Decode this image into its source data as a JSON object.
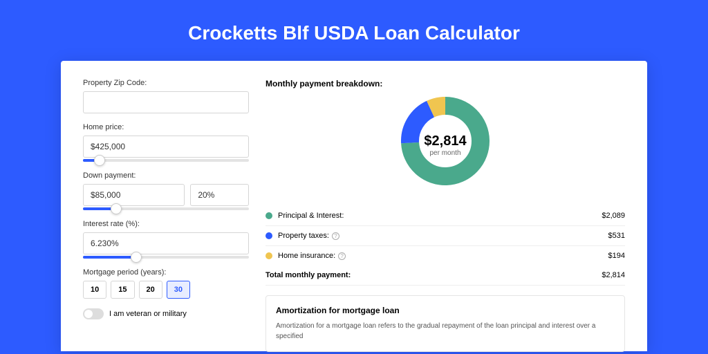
{
  "page": {
    "title": "Crocketts Blf USDA Loan Calculator"
  },
  "form": {
    "zip": {
      "label": "Property Zip Code:",
      "value": ""
    },
    "homePrice": {
      "label": "Home price:",
      "value": "$425,000",
      "sliderPct": 10
    },
    "downPayment": {
      "label": "Down payment:",
      "value": "$85,000",
      "pct": "20%",
      "sliderPct": 20
    },
    "rate": {
      "label": "Interest rate (%):",
      "value": "6.230%",
      "sliderPct": 32
    },
    "period": {
      "label": "Mortgage period (years):",
      "options": [
        "10",
        "15",
        "20",
        "30"
      ],
      "selected": "30"
    },
    "veteran": {
      "label": "I am veteran or military",
      "on": false
    }
  },
  "breakdown": {
    "title": "Monthly payment breakdown:",
    "centerAmount": "$2,814",
    "centerSub": "per month",
    "items": [
      {
        "label": "Principal & Interest:",
        "value": "$2,089",
        "color": "#4aa98c",
        "info": false
      },
      {
        "label": "Property taxes:",
        "value": "$531",
        "color": "#2d5bff",
        "info": true
      },
      {
        "label": "Home insurance:",
        "value": "$194",
        "color": "#f0c550",
        "info": true
      }
    ],
    "totalLabel": "Total monthly payment:",
    "totalValue": "$2,814",
    "donut": {
      "slices": [
        {
          "color": "#4aa98c",
          "pct": 74.2
        },
        {
          "color": "#2d5bff",
          "pct": 18.9
        },
        {
          "color": "#f0c550",
          "pct": 6.9
        }
      ],
      "bg": "#ffffff",
      "size": 128,
      "thickness": 26
    }
  },
  "amort": {
    "title": "Amortization for mortgage loan",
    "text": "Amortization for a mortgage loan refers to the gradual repayment of the loan principal and interest over a specified"
  }
}
